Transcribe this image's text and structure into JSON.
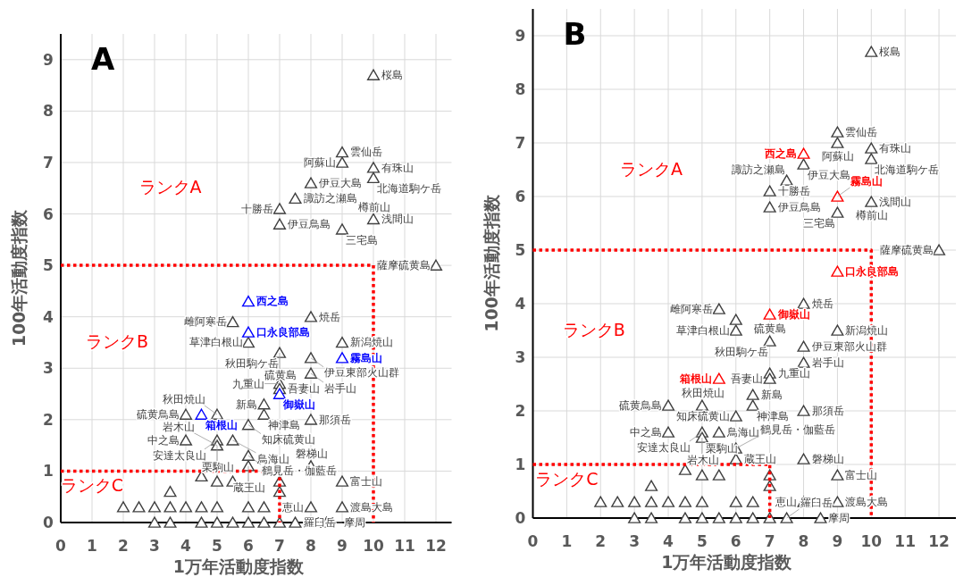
{
  "chart_data": [
    {
      "type": "scatter",
      "title": "A",
      "xlabel": "1万年活動度指数",
      "ylabel": "100年活動度指数",
      "xlim": [
        0,
        12.5
      ],
      "ylim": [
        0,
        9.5
      ],
      "xticks": [
        0,
        1,
        2,
        3,
        4,
        5,
        6,
        7,
        8,
        9,
        10,
        11,
        12
      ],
      "yticks": [
        0,
        1,
        2,
        3,
        4,
        5,
        6,
        7,
        8,
        9
      ],
      "grid": true,
      "marker": "triangle",
      "series": [
        {
          "color": "#404040",
          "x": [
            10,
            9,
            9,
            10,
            10,
            8,
            7.5,
            7,
            10,
            7,
            9,
            12,
            8,
            5.5,
            6,
            9,
            7,
            8,
            8,
            7,
            7,
            6.5,
            4,
            5,
            6.5,
            8,
            6,
            4,
            5,
            5.5,
            5,
            6,
            6,
            8,
            4.5,
            5,
            5.5,
            7,
            9,
            3.5,
            7,
            2,
            2.5,
            3,
            3.5,
            4,
            4.5,
            5,
            6,
            6.5,
            8,
            9,
            3,
            3.5,
            4.5,
            5,
            5.5,
            6,
            6.5,
            7,
            7.5,
            8.5
          ],
          "values": [
            8.7,
            7.2,
            7,
            6.9,
            6.7,
            6.6,
            6.3,
            6.1,
            5.9,
            5.8,
            5.7,
            5,
            4,
            3.9,
            3.5,
            3.5,
            3.3,
            3.2,
            2.9,
            2.7,
            2.6,
            2.3,
            2.1,
            2.1,
            2.1,
            2,
            1.9,
            1.6,
            1.6,
            1.6,
            1.5,
            1.3,
            1.1,
            1.1,
            0.9,
            0.8,
            0.8,
            0.8,
            0.8,
            0.6,
            0.6,
            0.3,
            0.3,
            0.3,
            0.3,
            0.3,
            0.3,
            0.3,
            0.3,
            0.3,
            0.3,
            0.3,
            0,
            0,
            0,
            0,
            0,
            0,
            0,
            0,
            0,
            0
          ]
        },
        {
          "color": "#0000ff",
          "x": [
            6,
            6,
            9,
            4.5,
            7
          ],
          "values": [
            4.3,
            3.7,
            3.2,
            2.1,
            2.5
          ]
        },
        {
          "type": "line",
          "color": "#ff0000",
          "line_style": "dotted",
          "marker": "none",
          "x": [
            0,
            10,
            10
          ],
          "values": [
            5,
            5,
            0
          ]
        },
        {
          "type": "line",
          "color": "#ff0000",
          "line_style": "dotted",
          "marker": "none",
          "x": [
            0,
            7,
            7
          ],
          "values": [
            1,
            1,
            0
          ]
        }
      ],
      "annotations": [
        "ランクA",
        "ランクB",
        "ランクC",
        {
          "text": "桜島",
          "x": 10,
          "y": 8.7
        },
        {
          "text": "雲仙岳",
          "x": 9,
          "y": 7.2
        },
        {
          "text": "阿蘇山",
          "x": 9,
          "y": 7
        },
        {
          "text": "有珠山",
          "x": 10,
          "y": 6.9
        },
        {
          "text": "北海道駒ケ岳",
          "x": 10,
          "y": 6.7
        },
        {
          "text": "伊豆大島",
          "x": 8,
          "y": 6.6
        },
        {
          "text": "諏訪之瀬島",
          "x": 7.5,
          "y": 6.3
        },
        {
          "text": "十勝岳",
          "x": 7,
          "y": 6.1
        },
        {
          "text": "浅間山",
          "x": 10,
          "y": 5.9
        },
        {
          "text": "樽前山",
          "x": 10,
          "y": 5.9
        },
        {
          "text": "伊豆鳥島",
          "x": 7,
          "y": 5.8
        },
        {
          "text": "三宅島",
          "x": 9,
          "y": 5.7
        },
        {
          "text": "薩摩硫黄島",
          "x": 12,
          "y": 5
        },
        {
          "text": "西之島",
          "x": 6,
          "y": 4.3
        },
        {
          "text": "焼岳",
          "x": 8,
          "y": 4
        },
        {
          "text": "雌阿寒岳",
          "x": 5.5,
          "y": 3.9
        },
        {
          "text": "口永良部島",
          "x": 6,
          "y": 3.7
        },
        {
          "text": "草津白根山",
          "x": 6,
          "y": 3.5
        },
        {
          "text": "新潟焼山",
          "x": 9,
          "y": 3.5
        },
        {
          "text": "秋田駒ケ岳",
          "x": 7,
          "y": 3.3
        },
        {
          "text": "硫黄島",
          "x": 7,
          "y": 3.3
        },
        {
          "text": "霧島山",
          "x": 9,
          "y": 3.2
        },
        {
          "text": "伊豆東部火山群",
          "x": 8,
          "y": 3.2
        },
        {
          "text": "岩手山",
          "x": 8,
          "y": 2.9
        },
        {
          "text": "九重山",
          "x": 7,
          "y": 2.7
        },
        {
          "text": "吾妻山",
          "x": 7,
          "y": 2.6
        },
        {
          "text": "御嶽山",
          "x": 7,
          "y": 2.5
        },
        {
          "text": "新島",
          "x": 6.5,
          "y": 2.3
        },
        {
          "text": "箱根山",
          "x": 4.5,
          "y": 2.1
        },
        {
          "text": "硫黄鳥島",
          "x": 4,
          "y": 2.1
        },
        {
          "text": "秋田焼山",
          "x": 5,
          "y": 2.1
        },
        {
          "text": "神津島",
          "x": 6.5,
          "y": 2.1
        },
        {
          "text": "那須岳",
          "x": 8,
          "y": 2
        },
        {
          "text": "知床硫黄山",
          "x": 6,
          "y": 1.9
        },
        {
          "text": "中之島",
          "x": 4,
          "y": 1.6
        },
        {
          "text": "安達太良山",
          "x": 5,
          "y": 1.6
        },
        {
          "text": "鳥海山",
          "x": 5.5,
          "y": 1.6
        },
        {
          "text": "岩木山",
          "x": 5,
          "y": 1.5
        },
        {
          "text": "栗駒山",
          "x": 5,
          "y": 1.5
        },
        {
          "text": "鶴見岳・伽藍岳",
          "x": 6,
          "y": 1.3
        },
        {
          "text": "蔵王山",
          "x": 6,
          "y": 1.1
        },
        {
          "text": "磐梯山",
          "x": 8,
          "y": 1.1
        },
        {
          "text": "富士山",
          "x": 9,
          "y": 0.8
        },
        {
          "text": "恵山",
          "x": 8,
          "y": 0.3
        },
        {
          "text": "渡島大島",
          "x": 9,
          "y": 0.3
        },
        {
          "text": "羅臼岳",
          "x": 7.5,
          "y": 0
        },
        {
          "text": "摩周",
          "x": 8.5,
          "y": 0
        }
      ]
    },
    {
      "type": "scatter",
      "title": "B",
      "xlabel": "1万年活動度指数",
      "ylabel": "100年活動度指数",
      "xlim": [
        0,
        12.5
      ],
      "ylim": [
        0,
        9.5
      ],
      "xticks": [
        0,
        1,
        2,
        3,
        4,
        5,
        6,
        7,
        8,
        9,
        10,
        11,
        12
      ],
      "yticks": [
        0,
        1,
        2,
        3,
        4,
        5,
        6,
        7,
        8,
        9
      ],
      "grid": true,
      "marker": "triangle",
      "series": [
        {
          "color": "#404040",
          "x": [
            10,
            9,
            9,
            10,
            10,
            8,
            7.5,
            7,
            10,
            7,
            9,
            12,
            8,
            5.5,
            6,
            6,
            9,
            7,
            8,
            8,
            7,
            7,
            6.5,
            4,
            5,
            6.5,
            8,
            6,
            4,
            5,
            5.5,
            5,
            6,
            6,
            8,
            4.5,
            5,
            5.5,
            7,
            9,
            3.5,
            7,
            2,
            2.5,
            3,
            3.5,
            4,
            4.5,
            5,
            6,
            6.5,
            8,
            9,
            3,
            3.5,
            4.5,
            5,
            5.5,
            6,
            6.5,
            7,
            7.5,
            8.5
          ],
          "values": [
            8.7,
            7.2,
            7,
            6.9,
            6.7,
            6.6,
            6.3,
            6.1,
            5.9,
            5.8,
            5.7,
            5,
            4,
            3.9,
            3.7,
            3.5,
            3.5,
            3.3,
            3.2,
            2.9,
            2.7,
            2.6,
            2.3,
            2.1,
            2.1,
            2.1,
            2,
            1.9,
            1.6,
            1.6,
            1.6,
            1.5,
            1.3,
            1.1,
            1.1,
            0.9,
            0.8,
            0.8,
            0.8,
            0.8,
            0.6,
            0.6,
            0.3,
            0.3,
            0.3,
            0.3,
            0.3,
            0.3,
            0.3,
            0.3,
            0.3,
            0.3,
            0.3,
            0,
            0,
            0,
            0,
            0,
            0,
            0,
            0,
            0,
            0
          ]
        },
        {
          "color": "#ff0000",
          "x": [
            8,
            9,
            9,
            7,
            5.5
          ],
          "values": [
            6.8,
            6,
            4.6,
            3.8,
            2.6
          ]
        },
        {
          "type": "line",
          "color": "#ff0000",
          "line_style": "dotted",
          "marker": "none",
          "x": [
            0,
            10,
            10
          ],
          "values": [
            5,
            5,
            0
          ]
        },
        {
          "type": "line",
          "color": "#ff0000",
          "line_style": "dotted",
          "marker": "none",
          "x": [
            0,
            7,
            7
          ],
          "values": [
            1,
            1,
            0
          ]
        }
      ],
      "annotations": [
        "ランクA",
        "ランクB",
        "ランクC",
        {
          "text": "桜島",
          "x": 10,
          "y": 8.7
        },
        {
          "text": "雲仙岳",
          "x": 9,
          "y": 7.2
        },
        {
          "text": "阿蘇山",
          "x": 9,
          "y": 7
        },
        {
          "text": "有珠山",
          "x": 10,
          "y": 6.9
        },
        {
          "text": "北海道駒ケ岳",
          "x": 10,
          "y": 6.7
        },
        {
          "text": "西之島",
          "x": 8,
          "y": 6.8
        },
        {
          "text": "伊豆大島",
          "x": 8,
          "y": 6.6
        },
        {
          "text": "諏訪之瀬島",
          "x": 7.5,
          "y": 6.3
        },
        {
          "text": "十勝岳",
          "x": 7,
          "y": 6.1
        },
        {
          "text": "霧島山",
          "x": 9,
          "y": 6
        },
        {
          "text": "浅間山",
          "x": 10,
          "y": 5.9
        },
        {
          "text": "樽前山",
          "x": 10,
          "y": 5.9
        },
        {
          "text": "伊豆鳥島",
          "x": 7,
          "y": 5.8
        },
        {
          "text": "三宅島",
          "x": 9,
          "y": 5.7
        },
        {
          "text": "薩摩硫黄島",
          "x": 12,
          "y": 5
        },
        {
          "text": "口永良部島",
          "x": 9,
          "y": 4.6
        },
        {
          "text": "焼岳",
          "x": 8,
          "y": 4
        },
        {
          "text": "御嶽山",
          "x": 7,
          "y": 3.8
        },
        {
          "text": "雌阿寒岳",
          "x": 5.5,
          "y": 3.9
        },
        {
          "text": "草津白根山",
          "x": 6,
          "y": 3.5
        },
        {
          "text": "新潟焼山",
          "x": 9,
          "y": 3.5
        },
        {
          "text": "秋田駒ケ岳",
          "x": 7,
          "y": 3.3
        },
        {
          "text": "硫黄島",
          "x": 7,
          "y": 3.3
        },
        {
          "text": "伊豆東部火山群",
          "x": 8,
          "y": 3.2
        },
        {
          "text": "岩手山",
          "x": 8,
          "y": 2.9
        },
        {
          "text": "九重山",
          "x": 7,
          "y": 2.7
        },
        {
          "text": "吾妻山",
          "x": 7,
          "y": 2.6
        },
        {
          "text": "箱根山",
          "x": 5.5,
          "y": 2.6
        },
        {
          "text": "新島",
          "x": 6.5,
          "y": 2.3
        },
        {
          "text": "硫黄鳥島",
          "x": 4,
          "y": 2.1
        },
        {
          "text": "秋田焼山",
          "x": 5,
          "y": 2.1
        },
        {
          "text": "神津島",
          "x": 6.5,
          "y": 2.1
        },
        {
          "text": "那須岳",
          "x": 8,
          "y": 2
        },
        {
          "text": "知床硫黄山",
          "x": 6,
          "y": 1.9
        },
        {
          "text": "中之島",
          "x": 4,
          "y": 1.6
        },
        {
          "text": "安達太良山",
          "x": 5,
          "y": 1.6
        },
        {
          "text": "鳥海山",
          "x": 5.5,
          "y": 1.6
        },
        {
          "text": "岩木山",
          "x": 5,
          "y": 1.5
        },
        {
          "text": "栗駒山",
          "x": 5,
          "y": 1.5
        },
        {
          "text": "鶴見岳・伽藍岳",
          "x": 6,
          "y": 1.3
        },
        {
          "text": "蔵王山",
          "x": 6,
          "y": 1.1
        },
        {
          "text": "磐梯山",
          "x": 8,
          "y": 1.1
        },
        {
          "text": "富士山",
          "x": 9,
          "y": 0.8
        },
        {
          "text": "恵山",
          "x": 8,
          "y": 0.3
        },
        {
          "text": "渡島大島",
          "x": 9,
          "y": 0.3
        },
        {
          "text": "羅臼岳",
          "x": 7.5,
          "y": 0
        },
        {
          "text": "摩周",
          "x": 8.5,
          "y": 0
        }
      ]
    }
  ]
}
